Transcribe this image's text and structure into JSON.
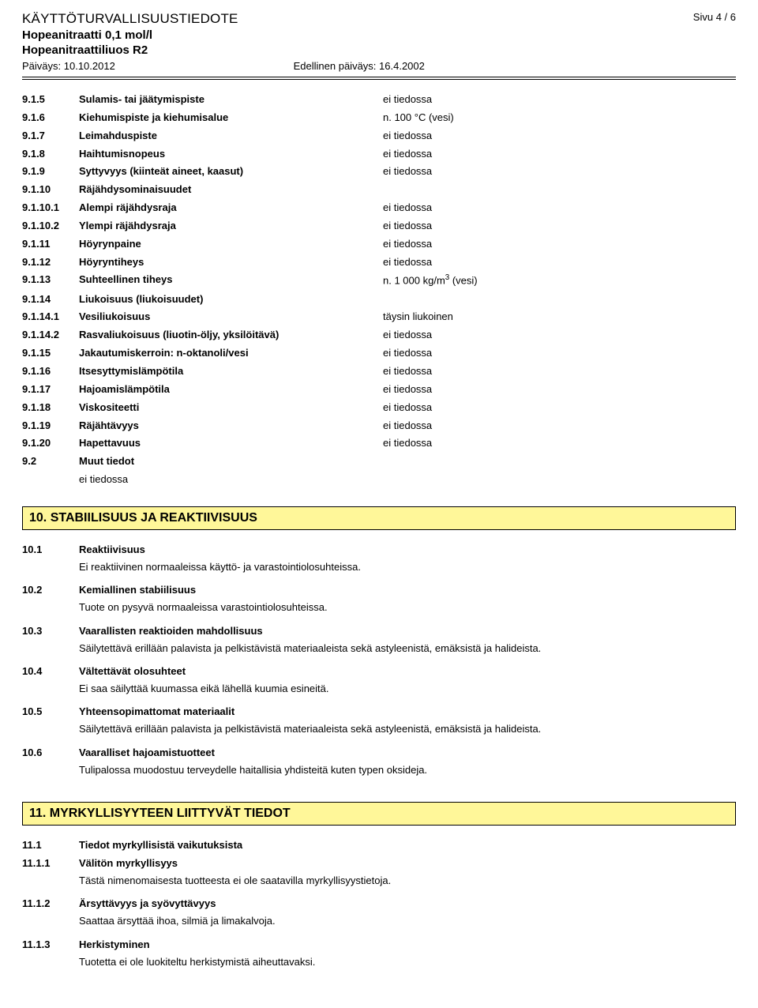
{
  "header": {
    "doc_title": "KÄYTTÖTURVALLISUUSTIEDOTE",
    "page_label": "Sivu 4 / 6",
    "product_line1": "Hopeanitraatti 0,1 mol/l",
    "product_line2": "Hopeanitraattiliuos R2",
    "date_label": "Päiväys: 10.10.2012",
    "prev_date_label": "Edellinen päiväys: 16.4.2002"
  },
  "section9": {
    "rows": [
      {
        "n": "9.1.5",
        "l": "Sulamis- tai jäätymispiste",
        "v": "ei tiedossa"
      },
      {
        "n": "9.1.6",
        "l": "Kiehumispiste ja kiehumisalue",
        "v": "n. 100 °C (vesi)"
      },
      {
        "n": "9.1.7",
        "l": "Leimahduspiste",
        "v": "ei tiedossa"
      },
      {
        "n": "9.1.8",
        "l": "Haihtumisnopeus",
        "v": "ei tiedossa"
      },
      {
        "n": "9.1.9",
        "l": "Syttyvyys (kiinteät aineet, kaasut)",
        "v": "ei tiedossa"
      },
      {
        "n": "9.1.10",
        "l": "Räjähdysominaisuudet",
        "v": ""
      },
      {
        "n": "9.1.10.1",
        "l": "Alempi räjähdysraja",
        "v": "ei tiedossa"
      },
      {
        "n": "9.1.10.2",
        "l": "Ylempi räjähdysraja",
        "v": "ei tiedossa"
      },
      {
        "n": "9.1.11",
        "l": "Höyrynpaine",
        "v": "ei tiedossa"
      },
      {
        "n": "9.1.12",
        "l": "Höyryntiheys",
        "v": "ei tiedossa"
      },
      {
        "n": "9.1.13",
        "l": "Suhteellinen tiheys",
        "v": "n. 1 000 kg/m³ (vesi)",
        "sup": true
      },
      {
        "n": "9.1.14",
        "l": "Liukoisuus (liukoisuudet)",
        "v": ""
      },
      {
        "n": "9.1.14.1",
        "l": "Vesiliukoisuus",
        "v": "täysin liukoinen"
      },
      {
        "n": "9.1.14.2",
        "l": "Rasvaliukoisuus (liuotin-öljy, yksilöitävä)",
        "v": "ei tiedossa"
      },
      {
        "n": "9.1.15",
        "l": "Jakautumiskerroin: n-oktanoli/vesi",
        "v": "ei tiedossa"
      },
      {
        "n": "9.1.16",
        "l": "Itsesyttymislämpötila",
        "v": "ei tiedossa"
      },
      {
        "n": "9.1.17",
        "l": "Hajoamislämpötila",
        "v": "ei tiedossa"
      },
      {
        "n": "9.1.18",
        "l": "Viskositeetti",
        "v": "ei tiedossa"
      },
      {
        "n": "9.1.19",
        "l": "Räjähtävyys",
        "v": "ei tiedossa"
      },
      {
        "n": "9.1.20",
        "l": "Hapettavuus",
        "v": "ei tiedossa"
      },
      {
        "n": "9.2",
        "l": "Muut tiedot",
        "v": ""
      }
    ],
    "muut_tiedot_value": "ei tiedossa"
  },
  "section10": {
    "title": "10. STABIILISUUS JA REAKTIIVISUUS",
    "items": [
      {
        "n": "10.1",
        "h": "Reaktiivisuus",
        "t": "Ei reaktiivinen normaaleissa käyttö- ja varastointiolosuhteissa."
      },
      {
        "n": "10.2",
        "h": "Kemiallinen stabiilisuus",
        "t": "Tuote on pysyvä normaaleissa varastointiolosuhteissa."
      },
      {
        "n": "10.3",
        "h": "Vaarallisten reaktioiden mahdollisuus",
        "t": "Säilytettävä erillään palavista ja pelkistävistä materiaaleista sekä astyleenistä, emäksistä ja halideista."
      },
      {
        "n": "10.4",
        "h": "Vältettävät olosuhteet",
        "t": "Ei saa säilyttää kuumassa eikä lähellä kuumia esineitä."
      },
      {
        "n": "10.5",
        "h": "Yhteensopimattomat materiaalit",
        "t": "Säilytettävä erillään palavista ja pelkistävistä materiaaleista sekä astyleenistä, emäksistä ja halideista."
      },
      {
        "n": "10.6",
        "h": "Vaaralliset hajoamistuotteet",
        "t": "Tulipalossa muodostuu terveydelle haitallisia yhdisteitä kuten typen oksideja."
      }
    ]
  },
  "section11": {
    "title": "11. MYRKYLLISYYTEEN LIITTYVÄT TIEDOT",
    "heading": {
      "n": "11.1",
      "h": "Tiedot myrkyllisistä vaikutuksista"
    },
    "items": [
      {
        "n": "11.1.1",
        "h": "Välitön myrkyllisyys",
        "t": "Tästä nimenomaisesta tuotteesta ei ole saatavilla myrkyllisyystietoja."
      },
      {
        "n": "11.1.2",
        "h": "Ärsyttävyys ja syövyttävyys",
        "t": "Saattaa ärsyttää ihoa, silmiä ja limakalvoja."
      },
      {
        "n": "11.1.3",
        "h": "Herkistyminen",
        "t": "Tuotetta ei ole luokiteltu herkistymistä aiheuttavaksi."
      }
    ]
  },
  "colors": {
    "section_bg": "#fff799",
    "section_border": "#000000",
    "text": "#000000",
    "page_bg": "#ffffff"
  }
}
